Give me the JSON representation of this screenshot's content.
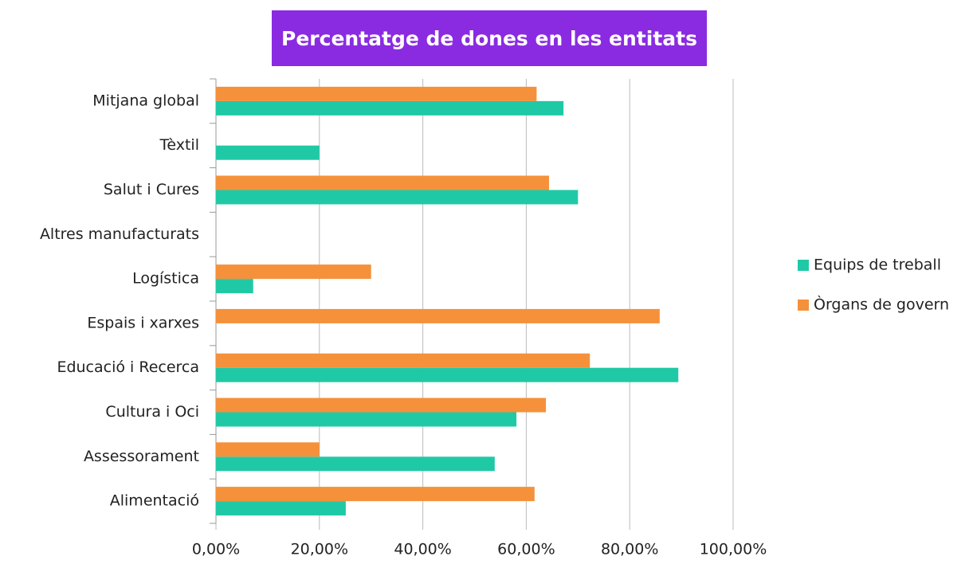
{
  "chart_data": {
    "type": "bar",
    "orientation": "horizontal",
    "title": "Percentatge de dones en les entitats",
    "categories": [
      "Mitjana global",
      "Tèxtil",
      "Salut i Cures",
      "Altres manufacturats",
      "Logística",
      "Espais i xarxes",
      "Educació i Recerca",
      "Cultura i Oci",
      "Assessorament",
      "Alimentació"
    ],
    "series": [
      {
        "name": "Equips de treball",
        "color": "#20c9a6",
        "values": [
          67.2,
          20,
          70,
          null,
          7.2,
          null,
          89.4,
          58.1,
          53.9,
          25.1
        ]
      },
      {
        "name": "Òrgans de govern",
        "color": "#f5913b",
        "values": [
          62,
          null,
          64.4,
          null,
          30,
          85.8,
          72.3,
          63.8,
          20,
          61.6
        ]
      }
    ],
    "xlim": [
      0,
      100
    ],
    "xticks": [
      {
        "value": 0,
        "label": "0,00%"
      },
      {
        "value": 20,
        "label": "20,00%"
      },
      {
        "value": 40,
        "label": "40,00%"
      },
      {
        "value": 60,
        "label": "60,00%"
      },
      {
        "value": 80,
        "label": "80,00%"
      },
      {
        "value": 100,
        "label": "100,00%"
      }
    ],
    "grid": true,
    "legend": "right",
    "title_background": "#8a2be2"
  }
}
